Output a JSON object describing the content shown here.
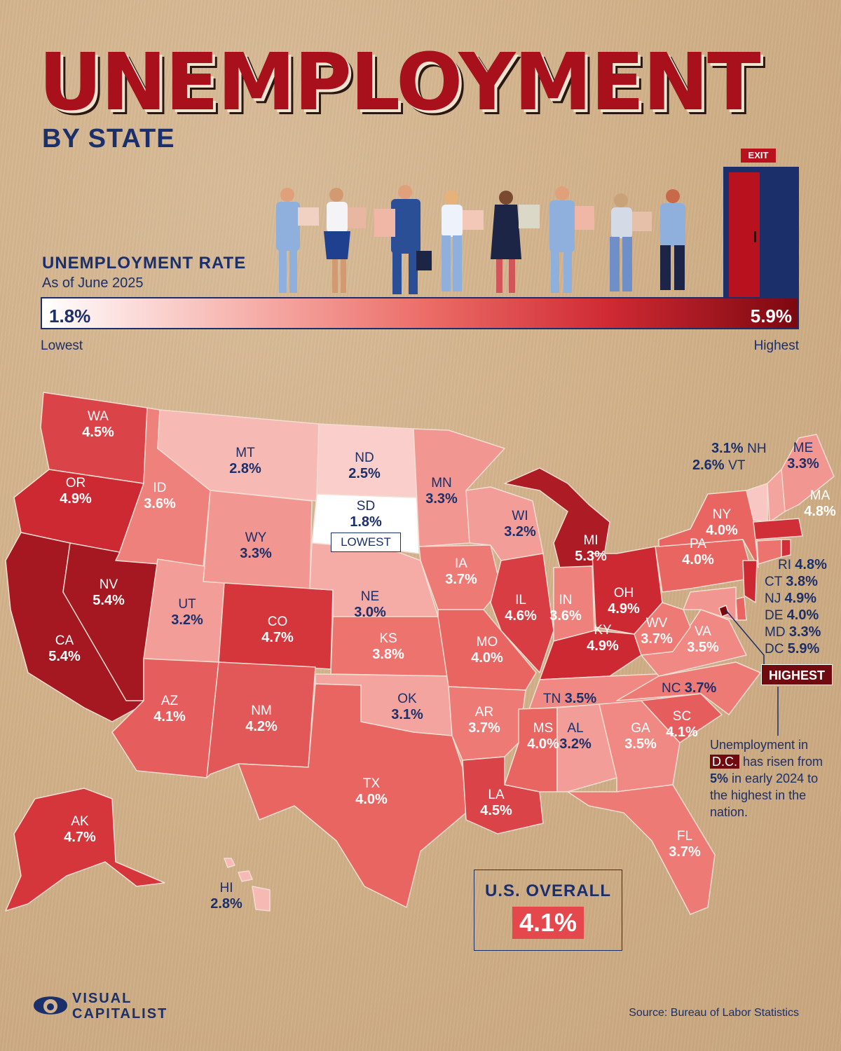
{
  "title": "UNEMPLOYMENT",
  "subtitle": "BY STATE",
  "legend": {
    "title": "UNEMPLOYMENT RATE",
    "subtitle": "As of June 2025",
    "min_value": "1.8%",
    "max_value": "5.9%",
    "min_label": "Lowest",
    "max_label": "Highest",
    "exit_sign": "EXIT"
  },
  "colors": {
    "min": "#ffffff",
    "max": "#7d0710",
    "accent": "#b8121f",
    "navy": "#1b2f6b"
  },
  "states": {
    "WA": {
      "abbr": "WA",
      "value": "4.5%"
    },
    "OR": {
      "abbr": "OR",
      "value": "4.9%"
    },
    "CA": {
      "abbr": "CA",
      "value": "5.4%"
    },
    "NV": {
      "abbr": "NV",
      "value": "5.4%"
    },
    "ID": {
      "abbr": "ID",
      "value": "3.6%"
    },
    "MT": {
      "abbr": "MT",
      "value": "2.8%"
    },
    "WY": {
      "abbr": "WY",
      "value": "3.3%"
    },
    "UT": {
      "abbr": "UT",
      "value": "3.2%"
    },
    "CO": {
      "abbr": "CO",
      "value": "4.7%"
    },
    "AZ": {
      "abbr": "AZ",
      "value": "4.1%"
    },
    "NM": {
      "abbr": "NM",
      "value": "4.2%"
    },
    "ND": {
      "abbr": "ND",
      "value": "2.5%"
    },
    "SD": {
      "abbr": "SD",
      "value": "1.8%",
      "badge": "LOWEST"
    },
    "NE": {
      "abbr": "NE",
      "value": "3.0%"
    },
    "KS": {
      "abbr": "KS",
      "value": "3.8%"
    },
    "OK": {
      "abbr": "OK",
      "value": "3.1%"
    },
    "TX": {
      "abbr": "TX",
      "value": "4.0%"
    },
    "MN": {
      "abbr": "MN",
      "value": "3.3%"
    },
    "IA": {
      "abbr": "IA",
      "value": "3.7%"
    },
    "MO": {
      "abbr": "MO",
      "value": "4.0%"
    },
    "AR": {
      "abbr": "AR",
      "value": "3.7%"
    },
    "LA": {
      "abbr": "LA",
      "value": "4.5%"
    },
    "WI": {
      "abbr": "WI",
      "value": "3.2%"
    },
    "IL": {
      "abbr": "IL",
      "value": "4.6%"
    },
    "MI": {
      "abbr": "MI",
      "value": "5.3%"
    },
    "IN": {
      "abbr": "IN",
      "value": "3.6%"
    },
    "OH": {
      "abbr": "OH",
      "value": "4.9%"
    },
    "KY": {
      "abbr": "KY",
      "value": "4.9%"
    },
    "TN": {
      "abbr": "TN",
      "value": "3.5%"
    },
    "MS": {
      "abbr": "MS",
      "value": "4.0%"
    },
    "AL": {
      "abbr": "AL",
      "value": "3.2%"
    },
    "GA": {
      "abbr": "GA",
      "value": "3.5%"
    },
    "FL": {
      "abbr": "FL",
      "value": "3.7%"
    },
    "SC": {
      "abbr": "SC",
      "value": "4.1%"
    },
    "NC": {
      "abbr": "NC",
      "value": "3.7%"
    },
    "VA": {
      "abbr": "VA",
      "value": "3.5%"
    },
    "WV": {
      "abbr": "WV",
      "value": "3.7%"
    },
    "PA": {
      "abbr": "PA",
      "value": "4.0%"
    },
    "NY": {
      "abbr": "NY",
      "value": "4.0%"
    },
    "ME": {
      "abbr": "ME",
      "value": "3.3%"
    },
    "NH": {
      "abbr": "NH",
      "value": "3.1%"
    },
    "VT": {
      "abbr": "VT",
      "value": "2.6%"
    },
    "MA": {
      "abbr": "MA",
      "value": "4.8%"
    },
    "RI": {
      "abbr": "RI",
      "value": "4.8%"
    },
    "CT": {
      "abbr": "CT",
      "value": "3.8%"
    },
    "NJ": {
      "abbr": "NJ",
      "value": "4.9%"
    },
    "DE": {
      "abbr": "DE",
      "value": "4.0%"
    },
    "MD": {
      "abbr": "MD",
      "value": "3.3%"
    },
    "DC": {
      "abbr": "DC",
      "value": "5.9%",
      "badge": "HIGHEST"
    },
    "AK": {
      "abbr": "AK",
      "value": "4.7%"
    },
    "HI": {
      "abbr": "HI",
      "value": "2.8%"
    }
  },
  "callout": {
    "line1": "Unemployment in",
    "dc": "D.C.",
    "line2": " has risen from",
    "bold": "5%",
    "line3": " in early 2024 to the highest in the nation."
  },
  "us_overall": {
    "label": "U.S. OVERALL",
    "value": "4.1%"
  },
  "brand": {
    "line1": "VISUAL",
    "line2": "CAPITALIST"
  },
  "source": "Source: Bureau of Labor Statistics"
}
